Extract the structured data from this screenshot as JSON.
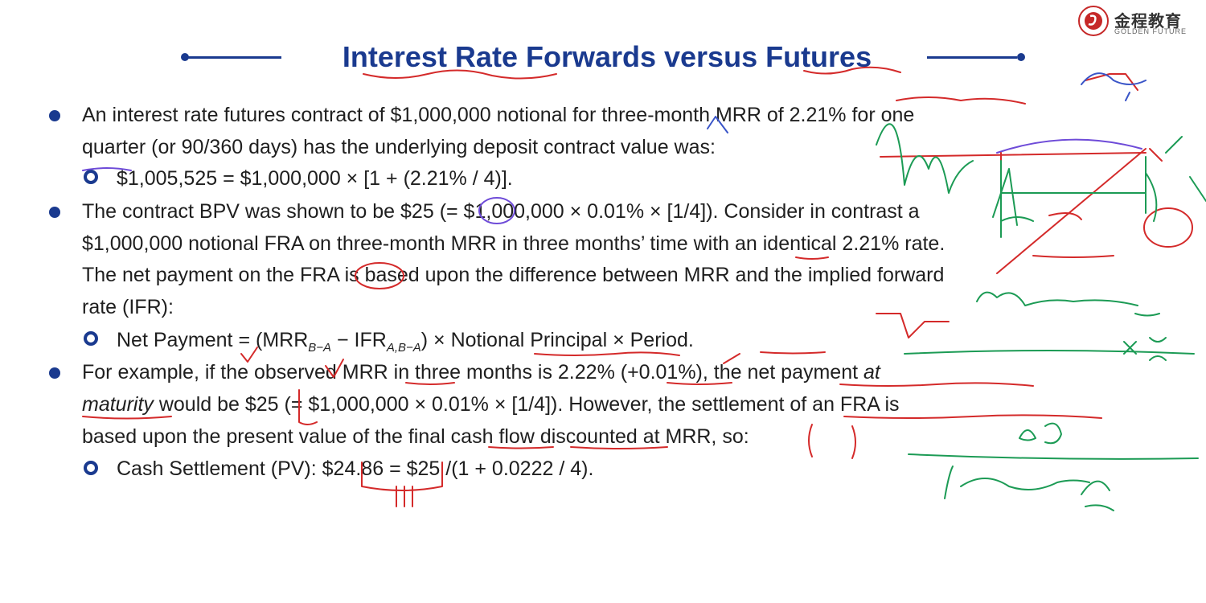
{
  "logo": {
    "cn": "金程教育",
    "en": "GOLDEN FUTURE"
  },
  "title": "Interest Rate Forwards versus Futures",
  "lines": {
    "l1": "An interest rate futures contract of $1,000,000 notional for three-month MRR of 2.21% for one",
    "l2": "quarter (or 90/360 days) has the underlying deposit contract value was:",
    "l3": "$1,005,525 = $1,000,000 × [1 + (2.21% / 4)].",
    "l4": "The contract BPV was shown to be $25 (= $1,000,000 × 0.01% × [1/4]). Consider in contrast a",
    "l5": "$1,000,000 notional FRA on three-month MRR in three months’ time with an identical 2.21% rate.",
    "l6": "The net payment on the FRA is based upon the difference between MRR and the implied forward",
    "l7": "rate (IFR):",
    "l8": {
      "a": "Net Payment = (MRR",
      "b": "B−A",
      "c": " − IFR",
      "d": "A,B−A",
      "e": ") × Notional Principal × Period."
    },
    "l9": {
      "a": "For example, if the observed MRR in three months is 2.22% (+0.01%), the net payment ",
      "b": "at"
    },
    "l10": {
      "a": "maturity",
      "b": " would be $25 (= $1,000,000 × 0.01% × [1/4]). However, the settlement of an FRA is"
    },
    "l11": "based upon the present value of the final cash flow discounted at MRR, so:",
    "l12": "Cash Settlement (PV): $24.86 = $25 /(1 + 0.0222 / 4)."
  },
  "colors": {
    "title": "#1a3a8f",
    "text": "#1f1f1f",
    "ink_red": "#d42a2a",
    "ink_green": "#1c9b55",
    "ink_purple": "#6e4bd8"
  }
}
